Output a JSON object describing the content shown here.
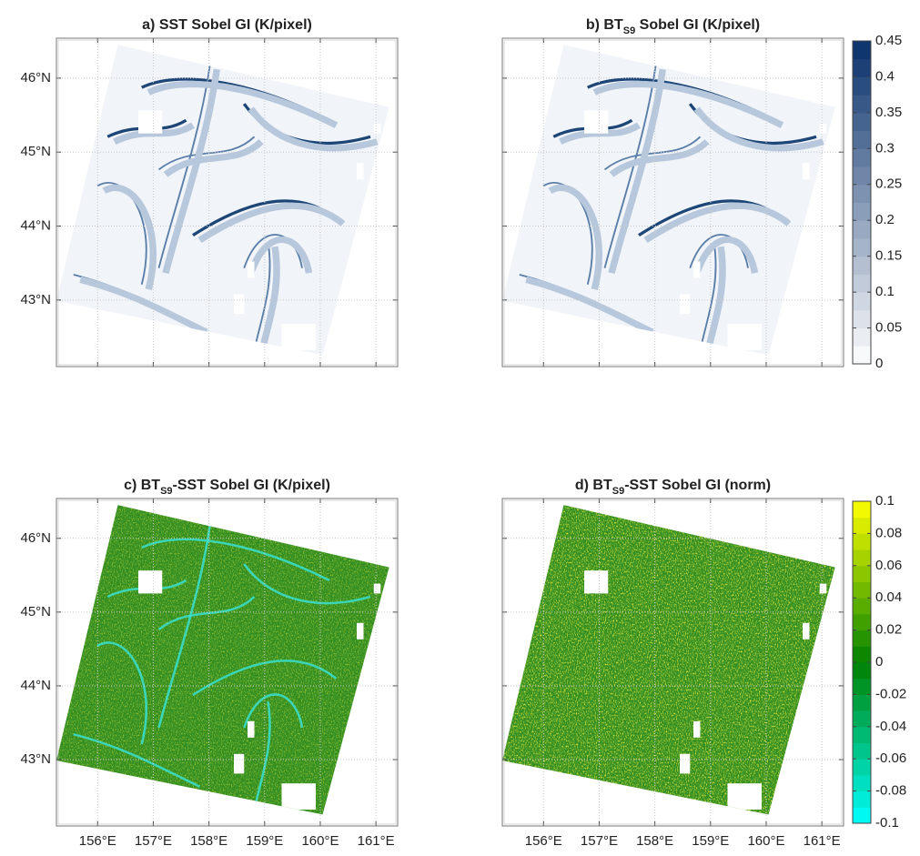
{
  "chart_data": [
    {
      "type": "map",
      "title": "a) SST Sobel GI (K/pixel)",
      "xlim": [
        155.26,
        161.39
      ],
      "ylim": [
        42.1,
        46.54
      ],
      "xticks": [
        156,
        157,
        158,
        159,
        160,
        161
      ],
      "yticks": [
        {
          "value": 46,
          "label": "46°N"
        },
        {
          "value": 45,
          "label": "45°N"
        },
        {
          "value": 44,
          "label": "44°N"
        },
        {
          "value": 43,
          "label": "43°N"
        }
      ],
      "field": "blue",
      "grid": true
    },
    {
      "type": "map",
      "title": "b) BT",
      "title_sub": "S9",
      "title_end": " Sobel GI (K/pixel)",
      "xlim": [
        155.26,
        161.39
      ],
      "ylim": [
        42.1,
        46.54
      ],
      "xticks": [
        156,
        157,
        158,
        159,
        160,
        161
      ],
      "yticks": [
        46,
        45,
        44,
        43
      ],
      "field": "blue",
      "grid": true,
      "colorbar": {
        "lim": [
          0,
          0.45
        ],
        "ticks": [
          0,
          0.05,
          0.1,
          0.15,
          0.2,
          0.25,
          0.3,
          0.35,
          0.4,
          0.45
        ],
        "levels": 18,
        "colors": [
          "#ffffff",
          "#08306b"
        ]
      }
    },
    {
      "type": "map",
      "title": "c) BT",
      "title_sub": "S9",
      "title_end": "-SST Sobel GI (K/pixel)",
      "xlim": [
        155.26,
        161.39
      ],
      "ylim": [
        42.1,
        46.54
      ],
      "xticks": [
        {
          "value": 156,
          "label": "156°E"
        },
        {
          "value": 157,
          "label": "157°E"
        },
        {
          "value": 158,
          "label": "158°E"
        },
        {
          "value": 159,
          "label": "159°E"
        },
        {
          "value": 160,
          "label": "160°E"
        },
        {
          "value": 161,
          "label": "161°E"
        }
      ],
      "yticks": [
        {
          "value": 46,
          "label": "46°N"
        },
        {
          "value": 45,
          "label": "45°N"
        },
        {
          "value": 44,
          "label": "44°N"
        },
        {
          "value": 43,
          "label": "43°N"
        }
      ],
      "field": "green-cyan",
      "grid": true
    },
    {
      "type": "map",
      "title": "d) BT",
      "title_sub": "S9",
      "title_end": "-SST Sobel GI (norm)",
      "xlim": [
        155.26,
        161.39
      ],
      "ylim": [
        42.1,
        46.54
      ],
      "xticks": [
        {
          "value": 156,
          "label": "156°E"
        },
        {
          "value": 157,
          "label": "157°E"
        },
        {
          "value": 158,
          "label": "158°E"
        },
        {
          "value": 159,
          "label": "159°E"
        },
        {
          "value": 160,
          "label": "160°E"
        },
        {
          "value": 161,
          "label": "161°E"
        }
      ],
      "yticks": [
        46,
        45,
        44,
        43
      ],
      "field": "green-yellow",
      "grid": true,
      "colorbar": {
        "lim": [
          -0.1,
          0.1
        ],
        "ticks": [
          0.1,
          0.08,
          0.06,
          0.04,
          0.02,
          0,
          -0.02,
          -0.04,
          -0.06,
          -0.08,
          -0.1
        ],
        "levels": 20,
        "colors": [
          "#00ffff",
          "#008000",
          "#ffff00"
        ]
      }
    }
  ]
}
